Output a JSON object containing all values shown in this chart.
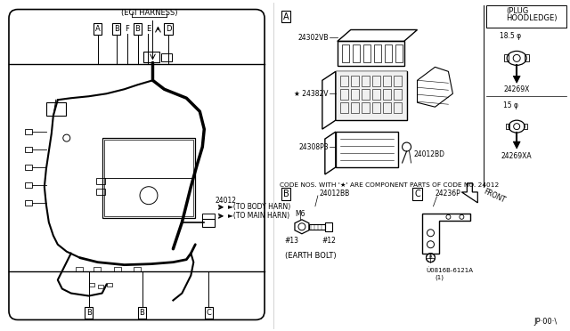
{
  "bg_color": "#ffffff",
  "line_color": "#000000",
  "title_text": "(EGI HARNESS)",
  "plug_title_line1": "(PLUG",
  "plug_title_line2": "HOODLEDGE)",
  "part_24302VB": "24302VB",
  "part_24382V": "★ 24382V",
  "part_24308P3": "24308P3",
  "part_24012BD": "24012BD",
  "part_24269X": "24269X",
  "part_24269XA": "24269XA",
  "part_24012": "24012",
  "part_24012BB": "24012BB",
  "part_24236P": "24236P",
  "part_0816B_line1": "Ù0816B-6121A",
  "part_0816B_line2": "(1)",
  "code_note": "CODE NOS. WITH '★' ARE COMPONENT PARTS OF CODE NO. 24012",
  "to_body": "►(TO BODY HARN)",
  "to_main": "►(TO MAIN HARN)",
  "earth_bolt": "(EARTH BOLT)",
  "page_ref": "JP·00·\\",
  "m6_label": "M6",
  "t13_label": "#13",
  "t12_label": "#12",
  "size_185": "18.5 φ",
  "size_15": "15 φ",
  "front_label": "FRONT",
  "label_A_sec": "A",
  "label_B_sec": "B",
  "label_C_sec": "C"
}
